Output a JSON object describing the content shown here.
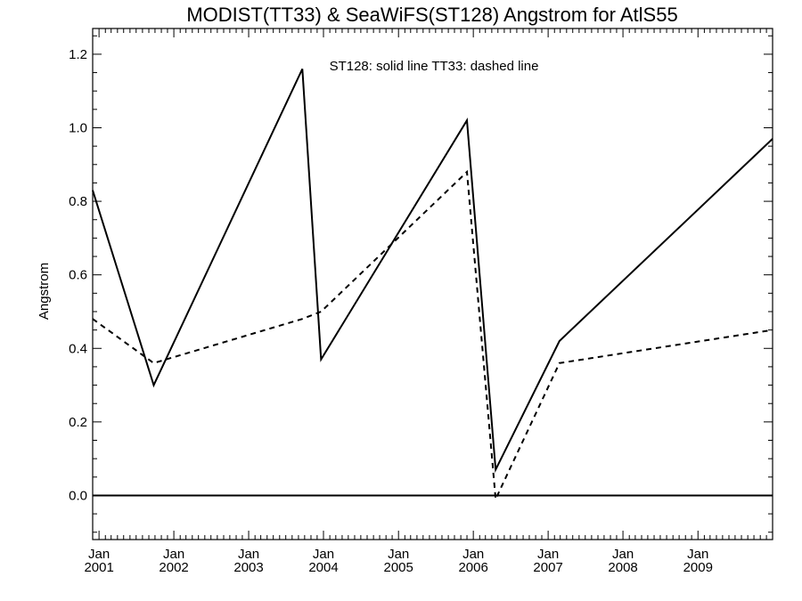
{
  "chart_data": {
    "type": "line",
    "title": "MODIST(TT33) & SeaWiFS(ST128)  Angstrom for AtlS55",
    "xlabel": "",
    "ylabel": "Angstrom",
    "annotation": "ST128: solid line    TT33: dashed line",
    "xlim": [
      "2000-12-01",
      "2009-12-31"
    ],
    "ylim": [
      -0.12,
      1.27
    ],
    "reference_line_y": 0.0,
    "x_ticks": [
      {
        "date": "2001-01-01",
        "month": "Jan",
        "year": "2001"
      },
      {
        "date": "2002-01-01",
        "month": "Jan",
        "year": "2002"
      },
      {
        "date": "2003-01-01",
        "month": "Jan",
        "year": "2003"
      },
      {
        "date": "2004-01-01",
        "month": "Jan",
        "year": "2004"
      },
      {
        "date": "2005-01-01",
        "month": "Jan",
        "year": "2005"
      },
      {
        "date": "2006-01-01",
        "month": "Jan",
        "year": "2006"
      },
      {
        "date": "2007-01-01",
        "month": "Jan",
        "year": "2007"
      },
      {
        "date": "2008-01-01",
        "month": "Jan",
        "year": "2008"
      },
      {
        "date": "2009-01-01",
        "month": "Jan",
        "year": "2009"
      }
    ],
    "y_ticks": [
      "0.0",
      "0.2",
      "0.4",
      "0.6",
      "0.8",
      "1.0",
      "1.2"
    ],
    "series": [
      {
        "name": "ST128",
        "style": "solid",
        "x": [
          "2000-12-01",
          "2001-09-25",
          "2003-09-20",
          "2003-12-20",
          "2005-12-01",
          "2006-04-20",
          "2007-02-25",
          "2009-12-31"
        ],
        "y": [
          0.83,
          0.3,
          1.16,
          0.37,
          1.02,
          0.07,
          0.42,
          0.97
        ]
      },
      {
        "name": "TT33",
        "style": "dashed",
        "x": [
          "2000-12-01",
          "2001-09-25",
          "2003-09-20",
          "2003-12-20",
          "2005-12-01",
          "2006-04-20",
          "2007-02-25",
          "2009-12-31"
        ],
        "y": [
          0.48,
          0.36,
          0.48,
          0.5,
          0.88,
          -0.01,
          0.36,
          0.45
        ]
      }
    ]
  }
}
